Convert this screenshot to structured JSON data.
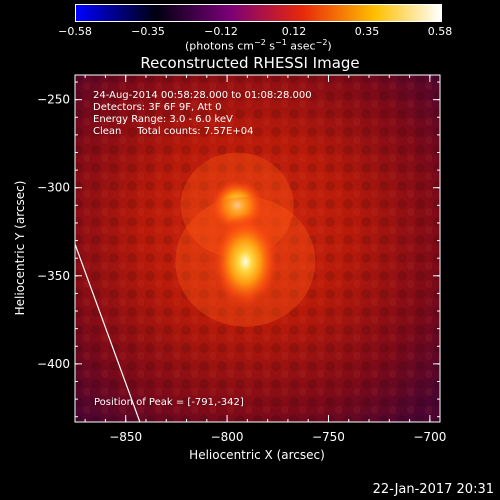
{
  "chart_data": {
    "type": "heatmap",
    "title": "Reconstructed RHESSI Image",
    "xlabel": "Heliocentric X (arcsec)",
    "ylabel": "Heliocentric Y (arcsec)",
    "xlim": [
      -875,
      -695
    ],
    "ylim": [
      -433,
      -236
    ],
    "x_ticks": [
      -850,
      -800,
      -750,
      -700
    ],
    "x_tick_labels": [
      "−850",
      "−800",
      "−750",
      "−700"
    ],
    "y_ticks": [
      -250,
      -300,
      -350,
      -400
    ],
    "y_tick_labels": [
      "−250",
      "−300",
      "−350",
      "−400"
    ],
    "colorbar": {
      "min": -0.58,
      "max": 0.58,
      "tick_labels": [
        "−0.58",
        "−0.35",
        "−0.12",
        "0.12",
        "0.35",
        "0.58"
      ],
      "label_main": "(photons cm",
      "label_exp1": "−2",
      "label_mid1": " s",
      "label_exp2": "−1",
      "label_mid2": " asec",
      "label_exp3": "−2",
      "label_end": ")",
      "colors": [
        "#0000ff",
        "#000000",
        "#7a0078",
        "#e8280a",
        "#ffc000",
        "#ffffff"
      ]
    },
    "sources": [
      {
        "x": -795,
        "y": -310,
        "peak": 0.45
      },
      {
        "x": -791,
        "y": -342,
        "peak": 0.58
      }
    ],
    "annotations": [
      "24-Aug-2014 00:58:28.000 to 01:08:28.000",
      "Detectors: 3F 6F 9F, Att 0",
      "Energy Range: 3.0 - 6.0 keV",
      "Clean     Total counts: 7.57E+04"
    ],
    "peak_label": "Position of Peak = [-791,-342]",
    "limb_line": [
      [
        -875,
        -332
      ],
      [
        -843,
        -433
      ]
    ]
  },
  "footer": {
    "timestamp": "22-Jan-2017 20:31"
  }
}
